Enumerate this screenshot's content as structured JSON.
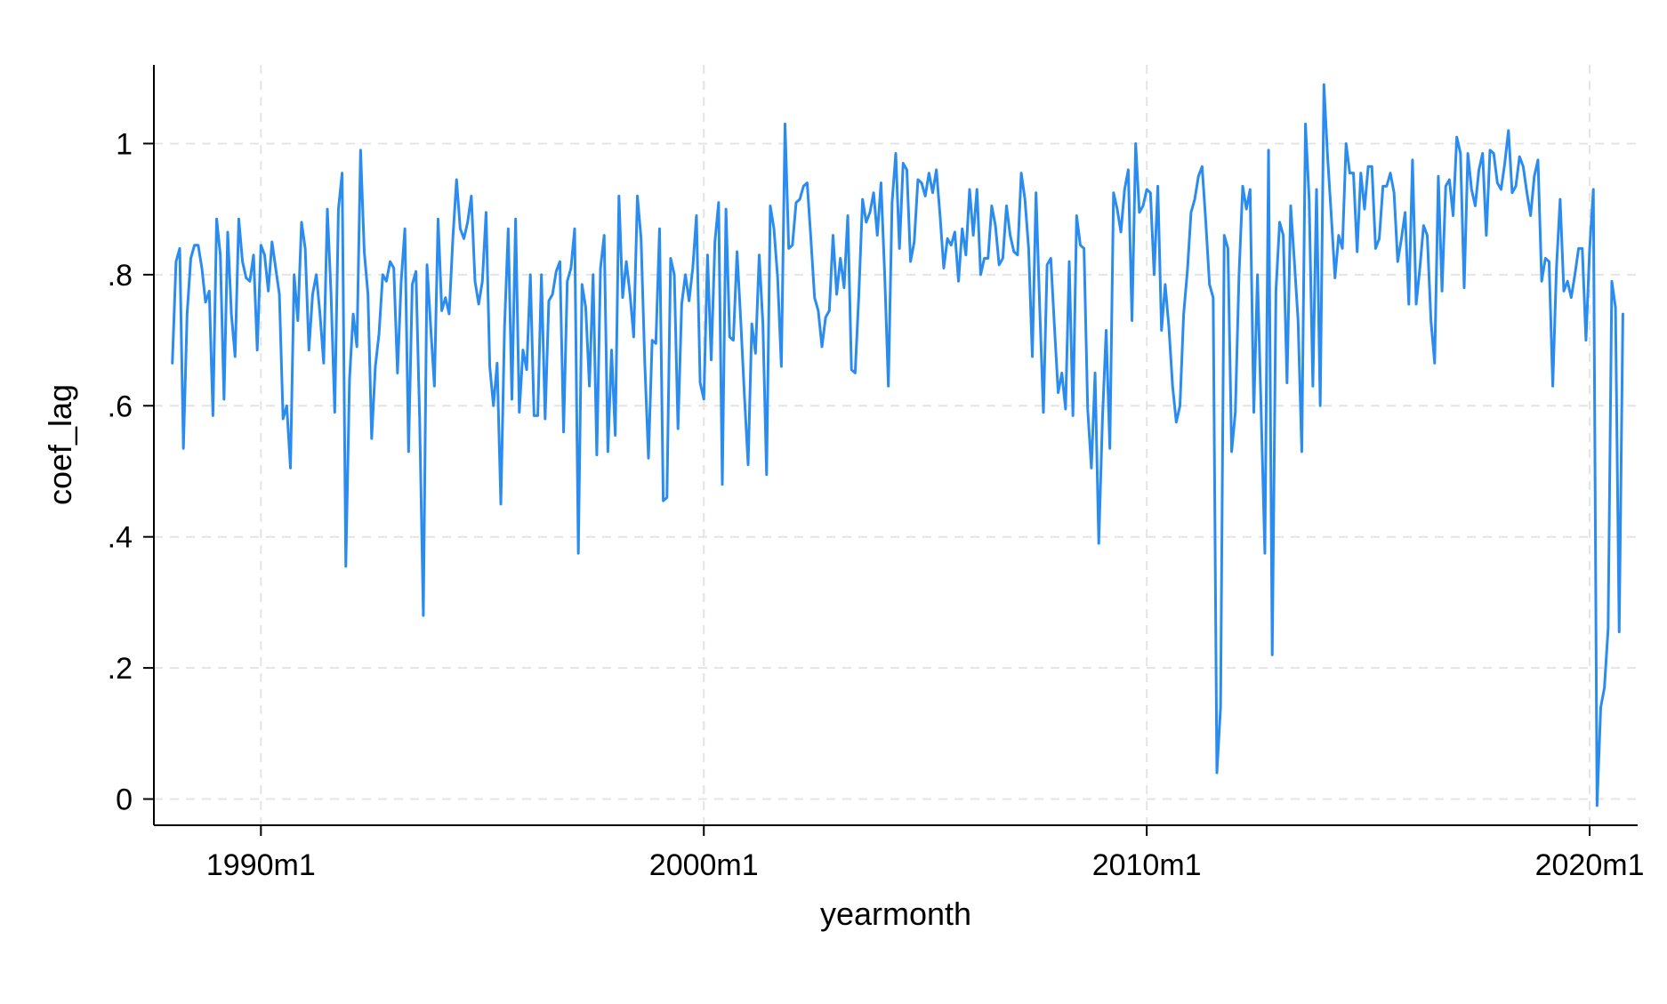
{
  "chart_data": {
    "type": "line",
    "title": "",
    "xlabel": "yearmonth",
    "ylabel": "coef_lag",
    "x_ticks": [
      "1990m1",
      "2000m1",
      "2010m1",
      "2020m1"
    ],
    "y_ticks": [
      "0",
      ".2",
      ".4",
      ".6",
      ".8",
      "1"
    ],
    "y_tick_values": [
      0,
      0.2,
      0.4,
      0.6,
      0.8,
      1.0
    ],
    "xlim": [
      "1987m8",
      "2021m2"
    ],
    "ylim": [
      -0.04,
      1.12
    ],
    "grid": true,
    "legend": "none",
    "colors": {
      "line": "#2b8cf0",
      "grid": "#e4e4e4",
      "axis": "#000000"
    },
    "x_start": "1988m1",
    "series": [
      {
        "values": [
          0.665,
          0.82,
          0.84,
          0.535,
          0.74,
          0.825,
          0.845,
          0.845,
          0.81,
          0.758,
          0.775,
          0.585,
          0.885,
          0.83,
          0.61,
          0.865,
          0.74,
          0.675,
          0.885,
          0.82,
          0.795,
          0.79,
          0.83,
          0.685,
          0.845,
          0.83,
          0.775,
          0.85,
          0.81,
          0.77,
          0.58,
          0.6,
          0.505,
          0.8,
          0.73,
          0.88,
          0.84,
          0.685,
          0.77,
          0.8,
          0.74,
          0.665,
          0.9,
          0.77,
          0.59,
          0.9,
          0.955,
          0.355,
          0.64,
          0.74,
          0.69,
          0.99,
          0.835,
          0.77,
          0.55,
          0.66,
          0.71,
          0.8,
          0.79,
          0.82,
          0.81,
          0.65,
          0.79,
          0.87,
          0.53,
          0.785,
          0.805,
          0.58,
          0.28,
          0.815,
          0.72,
          0.63,
          0.885,
          0.745,
          0.765,
          0.74,
          0.855,
          0.945,
          0.87,
          0.855,
          0.88,
          0.92,
          0.79,
          0.755,
          0.79,
          0.895,
          0.66,
          0.6,
          0.665,
          0.45,
          0.72,
          0.87,
          0.61,
          0.885,
          0.59,
          0.685,
          0.655,
          0.8,
          0.585,
          0.585,
          0.8,
          0.58,
          0.76,
          0.77,
          0.805,
          0.82,
          0.56,
          0.79,
          0.81,
          0.87,
          0.375,
          0.785,
          0.75,
          0.63,
          0.8,
          0.525,
          0.81,
          0.86,
          0.53,
          0.685,
          0.555,
          0.92,
          0.765,
          0.82,
          0.77,
          0.705,
          0.92,
          0.855,
          0.665,
          0.52,
          0.7,
          0.695,
          0.87,
          0.455,
          0.46,
          0.825,
          0.8,
          0.565,
          0.755,
          0.8,
          0.76,
          0.81,
          0.89,
          0.635,
          0.61,
          0.83,
          0.67,
          0.85,
          0.91,
          0.48,
          0.9,
          0.705,
          0.7,
          0.835,
          0.73,
          0.615,
          0.51,
          0.725,
          0.68,
          0.83,
          0.725,
          0.495,
          0.905,
          0.87,
          0.795,
          0.66,
          1.03,
          0.84,
          0.845,
          0.91,
          0.915,
          0.935,
          0.94,
          0.855,
          0.765,
          0.745,
          0.69,
          0.735,
          0.745,
          0.86,
          0.77,
          0.825,
          0.78,
          0.89,
          0.655,
          0.65,
          0.77,
          0.915,
          0.88,
          0.895,
          0.925,
          0.86,
          0.94,
          0.8,
          0.63,
          0.91,
          0.985,
          0.84,
          0.97,
          0.96,
          0.82,
          0.85,
          0.945,
          0.94,
          0.92,
          0.955,
          0.925,
          0.96,
          0.89,
          0.81,
          0.855,
          0.845,
          0.865,
          0.79,
          0.87,
          0.83,
          0.93,
          0.86,
          0.93,
          0.8,
          0.825,
          0.825,
          0.905,
          0.875,
          0.815,
          0.825,
          0.905,
          0.86,
          0.835,
          0.83,
          0.955,
          0.915,
          0.84,
          0.675,
          0.925,
          0.75,
          0.59,
          0.815,
          0.825,
          0.72,
          0.62,
          0.65,
          0.595,
          0.82,
          0.585,
          0.89,
          0.845,
          0.84,
          0.595,
          0.505,
          0.65,
          0.39,
          0.58,
          0.715,
          0.535,
          0.925,
          0.9,
          0.865,
          0.93,
          0.96,
          0.73,
          1.0,
          0.895,
          0.905,
          0.93,
          0.925,
          0.8,
          0.935,
          0.715,
          0.785,
          0.72,
          0.63,
          0.575,
          0.6,
          0.74,
          0.805,
          0.895,
          0.915,
          0.95,
          0.965,
          0.88,
          0.785,
          0.765,
          0.04,
          0.14,
          0.86,
          0.84,
          0.53,
          0.59,
          0.8,
          0.935,
          0.9,
          0.93,
          0.59,
          0.8,
          0.59,
          0.375,
          0.99,
          0.22,
          0.775,
          0.88,
          0.86,
          0.635,
          0.905,
          0.82,
          0.73,
          0.53,
          1.03,
          0.915,
          0.63,
          0.93,
          0.6,
          1.09,
          0.98,
          0.89,
          0.795,
          0.86,
          0.84,
          1.0,
          0.955,
          0.955,
          0.835,
          0.955,
          0.9,
          0.965,
          0.965,
          0.84,
          0.855,
          0.935,
          0.935,
          0.955,
          0.925,
          0.82,
          0.855,
          0.895,
          0.755,
          0.975,
          0.755,
          0.81,
          0.875,
          0.86,
          0.73,
          0.665,
          0.95,
          0.775,
          0.935,
          0.945,
          0.89,
          1.01,
          0.985,
          0.78,
          0.985,
          0.93,
          0.905,
          0.96,
          0.985,
          0.86,
          0.99,
          0.985,
          0.94,
          0.93,
          0.97,
          1.02,
          0.925,
          0.935,
          0.98,
          0.965,
          0.925,
          0.89,
          0.95,
          0.975,
          0.79,
          0.825,
          0.82,
          0.63,
          0.81,
          0.915,
          0.775,
          0.79,
          0.765,
          0.8,
          0.84,
          0.84,
          0.7,
          0.84,
          0.93,
          -0.01,
          0.14,
          0.17,
          0.26,
          0.79,
          0.75,
          0.255,
          0.74
        ]
      }
    ]
  }
}
